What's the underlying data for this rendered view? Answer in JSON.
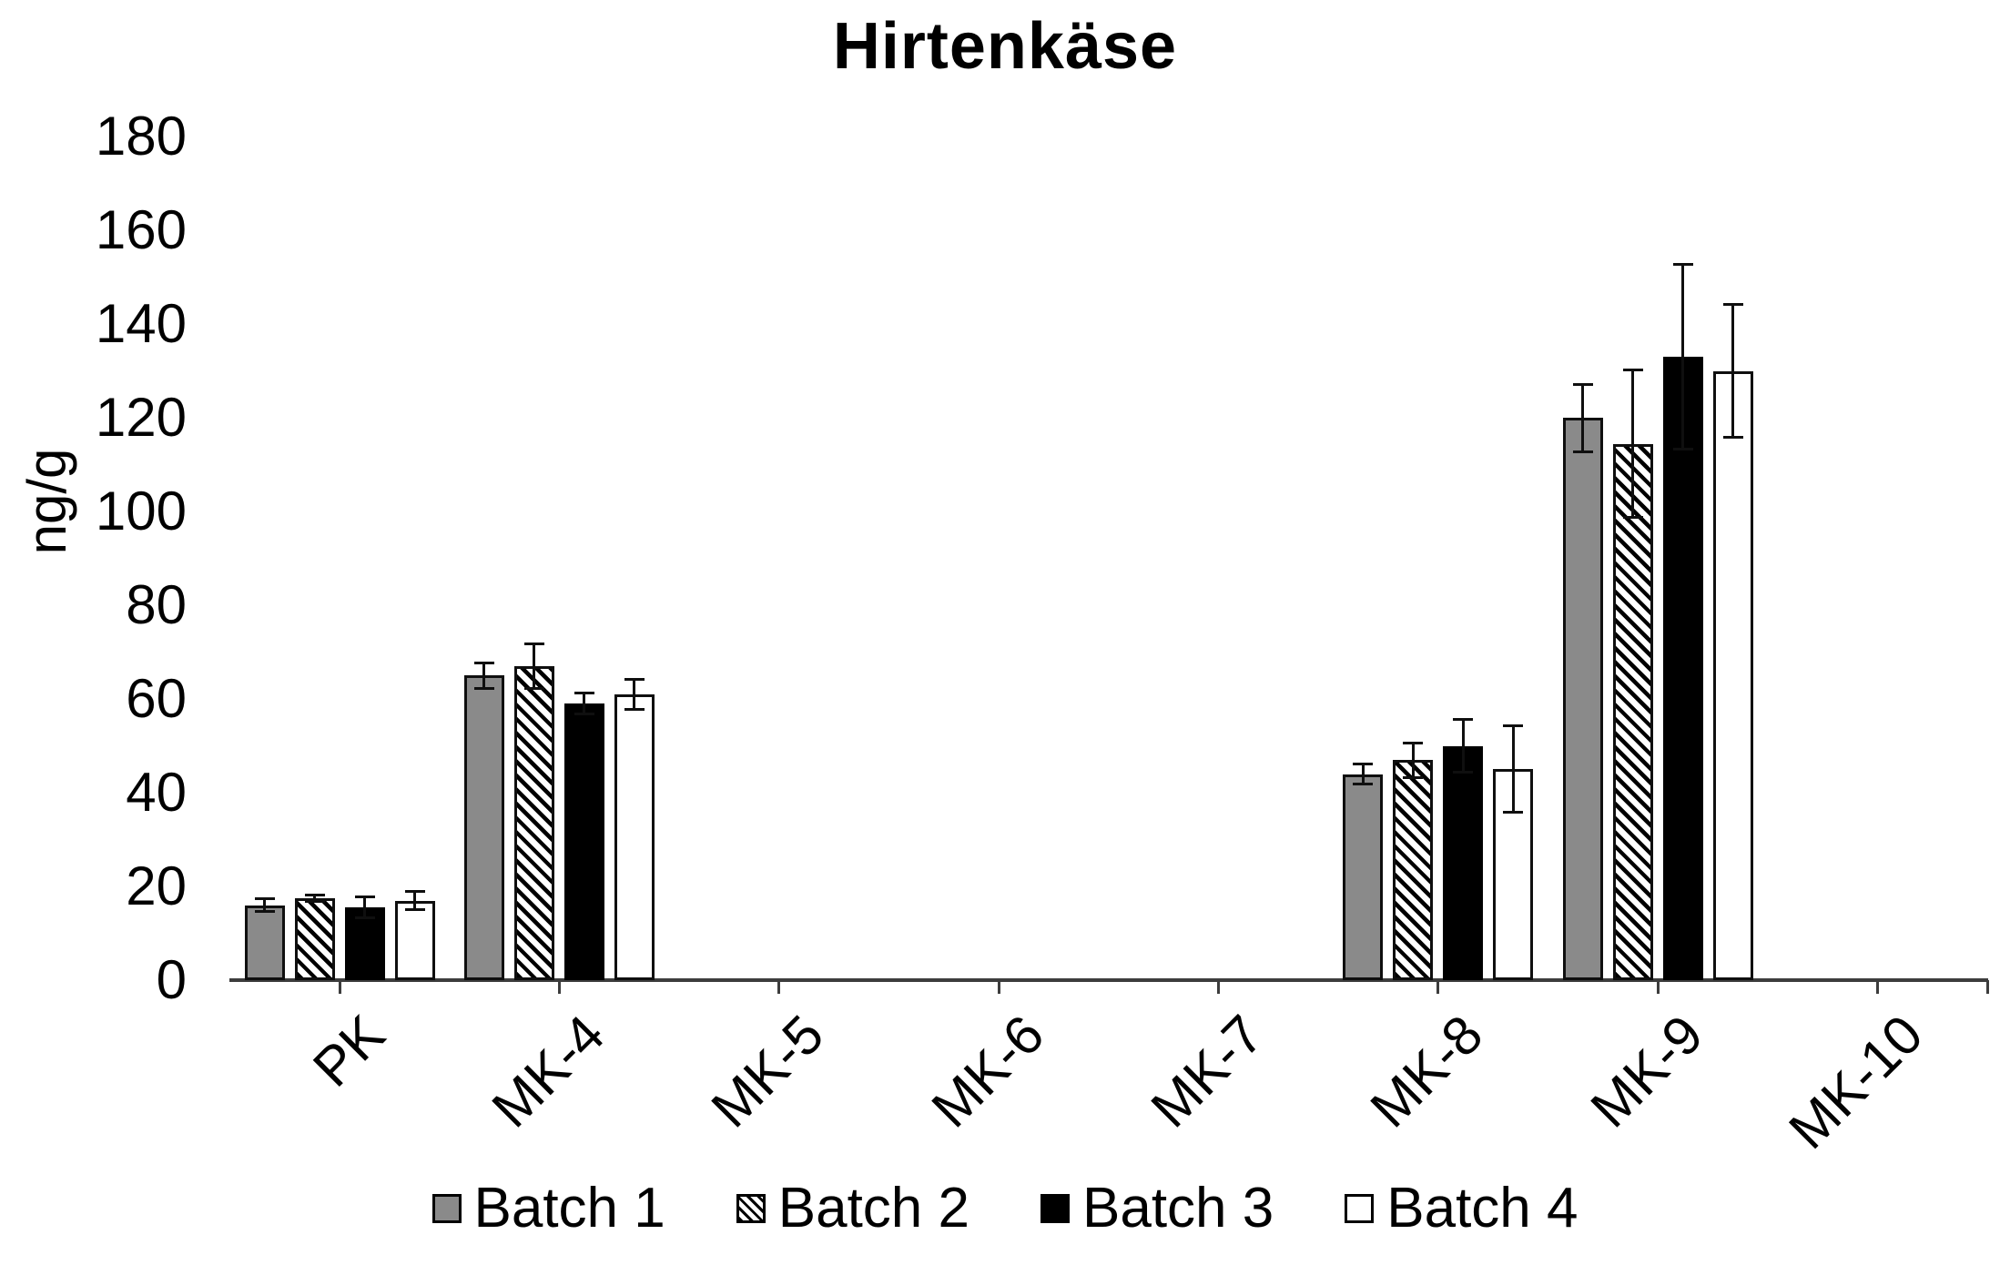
{
  "chart_data": {
    "type": "bar",
    "title": "Hirtenkäse",
    "ylabel": "ng/g",
    "xlabel": "",
    "ylim": [
      0,
      180
    ],
    "ytick_step": 20,
    "yticks": [
      0,
      20,
      40,
      60,
      80,
      100,
      120,
      140,
      160,
      180
    ],
    "grid": false,
    "legend_position": "bottom",
    "categories": [
      "PK",
      "MK-4",
      "MK-5",
      "MK-6",
      "MK-7",
      "MK-8",
      "MK-9",
      "MK-10"
    ],
    "series": [
      {
        "name": "Batch 1",
        "pattern": "gray",
        "color": "#8a8a8a",
        "values": [
          16,
          65,
          0,
          0,
          0,
          44,
          120,
          0
        ],
        "errors": [
          1.7,
          3,
          0,
          0,
          0,
          2.5,
          7.5,
          0
        ]
      },
      {
        "name": "Batch 2",
        "pattern": "hatch",
        "color": "diagonal-black-on-white",
        "values": [
          17.5,
          67,
          0,
          0,
          0,
          47,
          114.5,
          0
        ],
        "errors": [
          1,
          5,
          0,
          0,
          0,
          4,
          16,
          0
        ]
      },
      {
        "name": "Batch 3",
        "pattern": "black",
        "color": "#000000",
        "values": [
          15.5,
          59,
          0,
          0,
          0,
          50,
          133,
          0
        ],
        "errors": [
          2.5,
          2.5,
          0,
          0,
          0,
          6,
          20,
          0
        ]
      },
      {
        "name": "Batch 4",
        "pattern": "white",
        "color": "#ffffff",
        "values": [
          17,
          61,
          0,
          0,
          0,
          45,
          130,
          0
        ],
        "errors": [
          2.3,
          3.5,
          0,
          0,
          0,
          9.5,
          14.5,
          0
        ]
      }
    ]
  },
  "legend": {
    "items": [
      "Batch 1",
      "Batch 2",
      "Batch 3",
      "Batch 4"
    ]
  },
  "axis_colors": {
    "axis_line": "#3d3d3d",
    "text": "#000000"
  }
}
